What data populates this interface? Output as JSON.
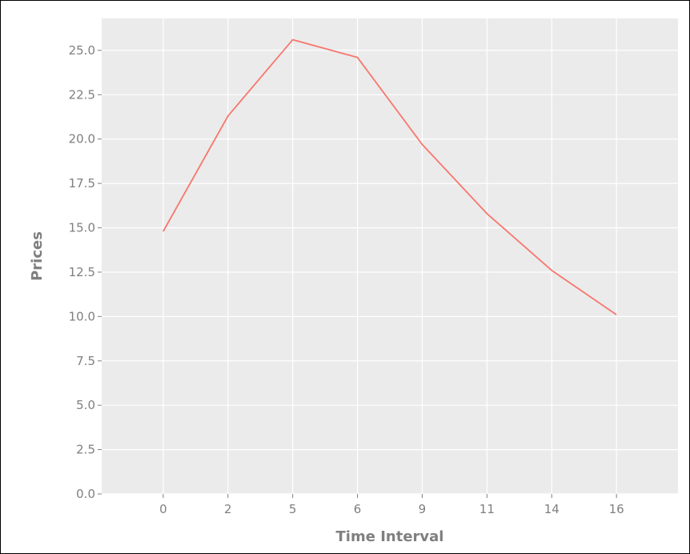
{
  "chart_data": {
    "type": "line",
    "title": "",
    "xlabel": "Time Interval",
    "ylabel": "Prices",
    "categories": [
      "0",
      "2",
      "5",
      "6",
      "9",
      "11",
      "14",
      "16"
    ],
    "series": [
      {
        "values": [
          14.8,
          21.3,
          25.6,
          24.6,
          19.7,
          15.8,
          12.6,
          10.1
        ]
      }
    ],
    "ylim": [
      0,
      26.8
    ],
    "yticks": [
      "0.0",
      "2.5",
      "5.0",
      "7.5",
      "10.0",
      "12.5",
      "15.0",
      "17.5",
      "20.0",
      "22.5",
      "25.0"
    ],
    "grid": true,
    "legend": "none",
    "colors": {
      "panel": "#ebebeb",
      "grid": "#ffffff",
      "line": "#f8766d",
      "text": "#7f7f7f",
      "tick": "#7f7f7f"
    }
  }
}
